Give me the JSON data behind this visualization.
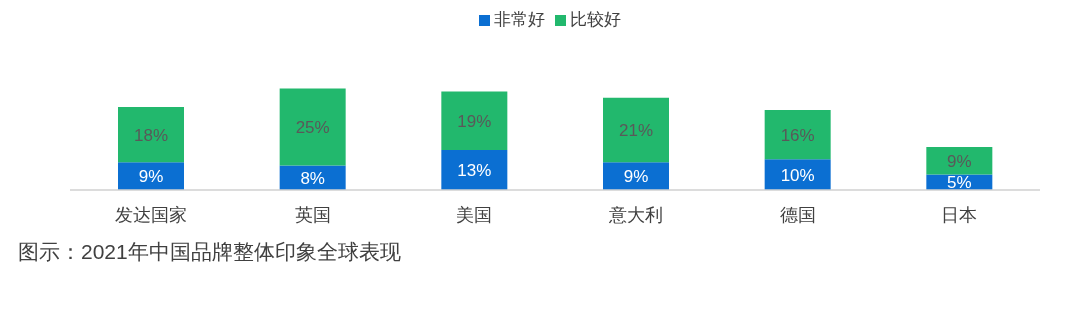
{
  "chart_data": {
    "type": "bar",
    "stacked": true,
    "data_labels": true,
    "legend": "top",
    "categories": [
      "发达国家",
      "英国",
      "美国",
      "意大利",
      "德国",
      "日本"
    ],
    "series": [
      {
        "name": "非常好",
        "color": "#0b6fd2",
        "values": [
          9,
          8,
          13,
          9,
          10,
          5
        ],
        "value_labels": [
          "9%",
          "8%",
          "13%",
          "9%",
          "10%",
          "5%"
        ]
      },
      {
        "name": "比较好",
        "color": "#22b86d",
        "values": [
          18,
          25,
          19,
          21,
          16,
          9
        ],
        "value_labels": [
          "18%",
          "25%",
          "19%",
          "21%",
          "16%",
          "9%"
        ]
      }
    ],
    "annotations": [
      "图示：2021年中国品牌整体印象全球表现"
    ]
  }
}
